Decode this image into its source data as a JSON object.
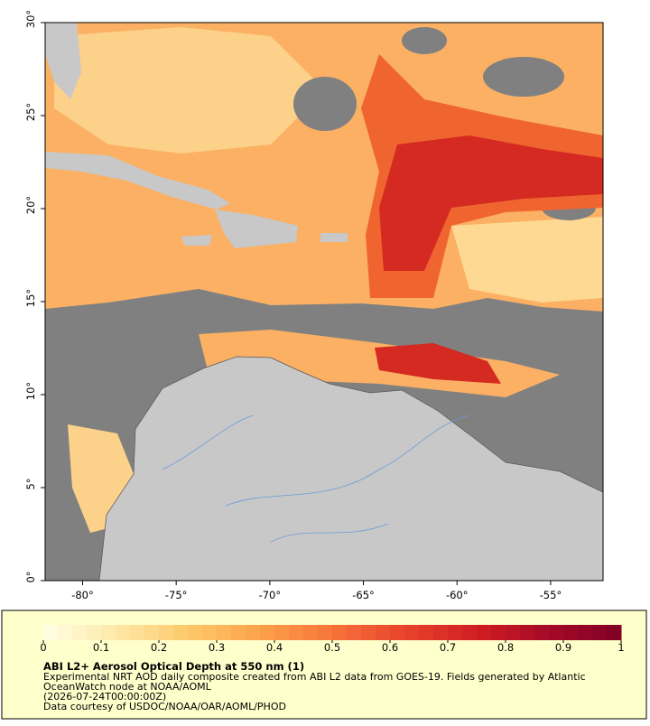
{
  "map": {
    "xlim": [
      -82,
      -52.2
    ],
    "ylim": [
      0,
      30
    ],
    "xticks": [
      {
        "value": -80,
        "label": "-80°"
      },
      {
        "value": -75,
        "label": "-75°"
      },
      {
        "value": -70,
        "label": "-70°"
      },
      {
        "value": -65,
        "label": "-65°"
      },
      {
        "value": -60,
        "label": "-60°"
      },
      {
        "value": -55,
        "label": "-55°"
      }
    ],
    "yticks": [
      {
        "value": 0,
        "label": "0°"
      },
      {
        "value": 5,
        "label": "5°"
      },
      {
        "value": 10,
        "label": "10°"
      },
      {
        "value": 15,
        "label": "15°"
      },
      {
        "value": 20,
        "label": "20°"
      },
      {
        "value": 25,
        "label": "25°"
      },
      {
        "value": 30,
        "label": "30°"
      }
    ]
  },
  "legend": {
    "lim": [
      0,
      1
    ],
    "ticks": [
      0,
      0.1,
      0.2,
      0.3,
      0.4,
      0.5,
      0.6,
      0.7,
      0.8,
      0.9,
      1
    ],
    "colors": [
      "#ffffe5",
      "#fee9a8",
      "#fdc96a",
      "#fca24a",
      "#f7743a",
      "#e8432b",
      "#d01e22",
      "#a50a26",
      "#800026"
    ],
    "title": "ABI L2+ Aerosol Optical Depth at 550 nm (1)",
    "notes": [
      "Experimental NRT AOD daily composite created from ABI L2 data from GOES-19. Fields generated by Atlantic",
      "OceanWatch node at NOAA/AOML",
      "(2026-07-24T00:00:00Z)",
      "Data courtesy of USDOC/NOAA/OAR/AOML/PHOD"
    ]
  }
}
